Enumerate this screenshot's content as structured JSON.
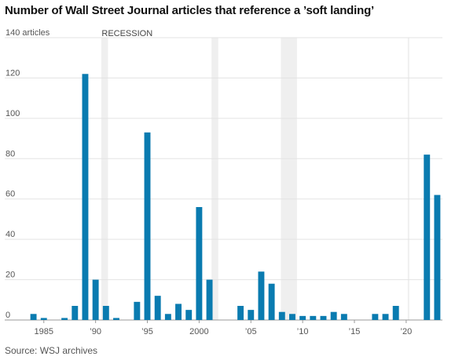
{
  "chart_data": {
    "type": "bar",
    "title": "Number of Wall Street Journal articles that reference a ’soft landing’",
    "source": "Source: WSJ archives",
    "y_unit_label": "140 articles",
    "recession_label": "RECESSION",
    "xlabel": "",
    "ylabel": "",
    "ylim": [
      0,
      140
    ],
    "y_ticks": [
      0,
      20,
      40,
      60,
      80,
      100,
      120,
      140
    ],
    "y_tick_labels": [
      "0",
      "20",
      "40",
      "60",
      "80",
      "100",
      "120",
      "140 articles"
    ],
    "x_range": [
      1983.5,
      2023.5
    ],
    "x_ticks": [
      1985,
      1990,
      1995,
      2000,
      2005,
      2010,
      2015,
      2020
    ],
    "x_tick_labels": [
      "1985",
      "’90",
      "’95",
      "2000",
      "’05",
      "’10",
      "’15",
      "’20"
    ],
    "grid": "horizontal",
    "bar_color": "#0a7bb0",
    "recession_color": "#efefef",
    "recessions": [
      [
        1990.55,
        1991.2
      ],
      [
        2001.2,
        2001.85
      ],
      [
        2007.9,
        2009.45
      ],
      [
        2020.15,
        2020.3
      ]
    ],
    "years": [
      1984,
      1985,
      1986,
      1987,
      1988,
      1989,
      1990,
      1991,
      1992,
      1993,
      1994,
      1995,
      1996,
      1997,
      1998,
      1999,
      2000,
      2001,
      2002,
      2003,
      2004,
      2005,
      2006,
      2007,
      2008,
      2009,
      2010,
      2011,
      2012,
      2013,
      2014,
      2015,
      2016,
      2017,
      2018,
      2019,
      2020,
      2021,
      2022,
      2023
    ],
    "values": [
      3,
      1,
      0,
      1,
      7,
      122,
      20,
      7,
      1,
      0,
      9,
      93,
      12,
      3,
      8,
      5,
      56,
      20,
      0,
      0,
      7,
      5,
      24,
      18,
      4,
      3,
      2,
      2,
      2,
      4,
      3,
      0,
      0,
      3,
      3,
      7,
      0,
      0,
      82,
      62
    ]
  }
}
